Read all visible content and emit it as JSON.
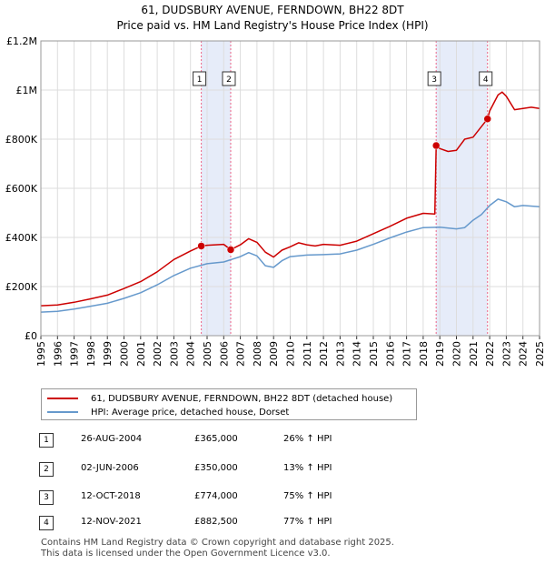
{
  "chart_data": {
    "type": "line",
    "title": "61, DUDSBURY AVENUE, FERNDOWN, BH22 8DT",
    "subtitle": "Price paid vs. HM Land Registry's House Price Index (HPI)",
    "xlim": [
      1995,
      2025
    ],
    "ylim": [
      0,
      1200000
    ],
    "y_ticks": [
      {
        "value": 0,
        "label": "£0"
      },
      {
        "value": 200000,
        "label": "£200K"
      },
      {
        "value": 400000,
        "label": "£400K"
      },
      {
        "value": 600000,
        "label": "£600K"
      },
      {
        "value": 800000,
        "label": "£800K"
      },
      {
        "value": 1000000,
        "label": "£1M"
      },
      {
        "value": 1200000,
        "label": "£1.2M"
      }
    ],
    "x_ticks": [
      "1995",
      "1996",
      "1997",
      "1998",
      "1999",
      "2000",
      "2001",
      "2002",
      "2003",
      "2004",
      "2005",
      "2006",
      "2007",
      "2008",
      "2009",
      "2010",
      "2011",
      "2012",
      "2013",
      "2014",
      "2015",
      "2016",
      "2017",
      "2018",
      "2019",
      "2020",
      "2021",
      "2022",
      "2023",
      "2024",
      "2025"
    ],
    "grid": true,
    "colors": {
      "property": "#cc0000",
      "hpi": "#6699cc",
      "shade": "#dde6f7",
      "marker_line": "#ee6688"
    },
    "series": [
      {
        "name": "61, DUDSBURY AVENUE, FERNDOWN, BH22 8DT (detached house)",
        "color": "#cc0000",
        "points": [
          [
            1995,
            122000
          ],
          [
            1996,
            125000
          ],
          [
            1997,
            136000
          ],
          [
            1998,
            150000
          ],
          [
            1999,
            165000
          ],
          [
            2000,
            192000
          ],
          [
            2001,
            220000
          ],
          [
            2002,
            260000
          ],
          [
            2003,
            310000
          ],
          [
            2004,
            345000
          ],
          [
            2004.65,
            365000
          ],
          [
            2005,
            368000
          ],
          [
            2006,
            372000
          ],
          [
            2006.42,
            350000
          ],
          [
            2007,
            370000
          ],
          [
            2007.5,
            395000
          ],
          [
            2008,
            380000
          ],
          [
            2008.5,
            340000
          ],
          [
            2009,
            320000
          ],
          [
            2009.5,
            348000
          ],
          [
            2010,
            362000
          ],
          [
            2010.5,
            378000
          ],
          [
            2011,
            370000
          ],
          [
            2011.5,
            365000
          ],
          [
            2012,
            372000
          ],
          [
            2013,
            368000
          ],
          [
            2014,
            385000
          ],
          [
            2015,
            415000
          ],
          [
            2016,
            445000
          ],
          [
            2017,
            478000
          ],
          [
            2018,
            498000
          ],
          [
            2018.7,
            495000
          ],
          [
            2018.78,
            774000
          ],
          [
            2019,
            762000
          ],
          [
            2019.5,
            750000
          ],
          [
            2020,
            755000
          ],
          [
            2020.5,
            800000
          ],
          [
            2021,
            808000
          ],
          [
            2021.87,
            882500
          ],
          [
            2022,
            915000
          ],
          [
            2022.5,
            980000
          ],
          [
            2022.75,
            992000
          ],
          [
            2023,
            975000
          ],
          [
            2023.5,
            920000
          ],
          [
            2024,
            925000
          ],
          [
            2024.5,
            930000
          ],
          [
            2025,
            925000
          ]
        ]
      },
      {
        "name": "HPI: Average price, detached house, Dorset",
        "color": "#6699cc",
        "points": [
          [
            1995,
            96000
          ],
          [
            1996,
            99000
          ],
          [
            1997,
            108000
          ],
          [
            1998,
            120000
          ],
          [
            1999,
            132000
          ],
          [
            2000,
            152000
          ],
          [
            2001,
            175000
          ],
          [
            2002,
            207000
          ],
          [
            2003,
            245000
          ],
          [
            2004,
            275000
          ],
          [
            2005,
            293000
          ],
          [
            2006,
            300000
          ],
          [
            2007,
            322000
          ],
          [
            2007.5,
            338000
          ],
          [
            2008,
            325000
          ],
          [
            2008.5,
            285000
          ],
          [
            2009,
            278000
          ],
          [
            2009.5,
            305000
          ],
          [
            2010,
            322000
          ],
          [
            2011,
            328000
          ],
          [
            2012,
            330000
          ],
          [
            2013,
            333000
          ],
          [
            2014,
            348000
          ],
          [
            2015,
            372000
          ],
          [
            2016,
            398000
          ],
          [
            2017,
            422000
          ],
          [
            2018,
            440000
          ],
          [
            2019,
            442000
          ],
          [
            2020,
            435000
          ],
          [
            2020.5,
            440000
          ],
          [
            2021,
            470000
          ],
          [
            2021.5,
            493000
          ],
          [
            2022,
            530000
          ],
          [
            2022.5,
            556000
          ],
          [
            2023,
            545000
          ],
          [
            2023.5,
            525000
          ],
          [
            2024,
            530000
          ],
          [
            2025,
            525000
          ]
        ]
      }
    ],
    "sales": [
      {
        "num": "1",
        "x": 2004.65,
        "y": 365000,
        "date": "26-AUG-2004",
        "price": "£365,000",
        "hpi": "26% ↑ HPI"
      },
      {
        "num": "2",
        "x": 2006.42,
        "y": 350000,
        "date": "02-JUN-2006",
        "price": "£350,000",
        "hpi": "13% ↑ HPI"
      },
      {
        "num": "3",
        "x": 2018.78,
        "y": 774000,
        "date": "12-OCT-2018",
        "price": "£774,000",
        "hpi": "75% ↑ HPI"
      },
      {
        "num": "4",
        "x": 2021.87,
        "y": 882500,
        "date": "12-NOV-2021",
        "price": "£882,500",
        "hpi": "77% ↑ HPI"
      }
    ],
    "shaded_ranges": [
      [
        2004.65,
        2006.42
      ],
      [
        2018.78,
        2021.87
      ]
    ]
  },
  "legend": {
    "property_label": "61, DUDSBURY AVENUE, FERNDOWN, BH22 8DT (detached house)",
    "hpi_label": "HPI: Average price, detached house, Dorset"
  },
  "footer": {
    "line1": "Contains HM Land Registry data © Crown copyright and database right 2025.",
    "line2": "This data is licensed under the Open Government Licence v3.0."
  }
}
